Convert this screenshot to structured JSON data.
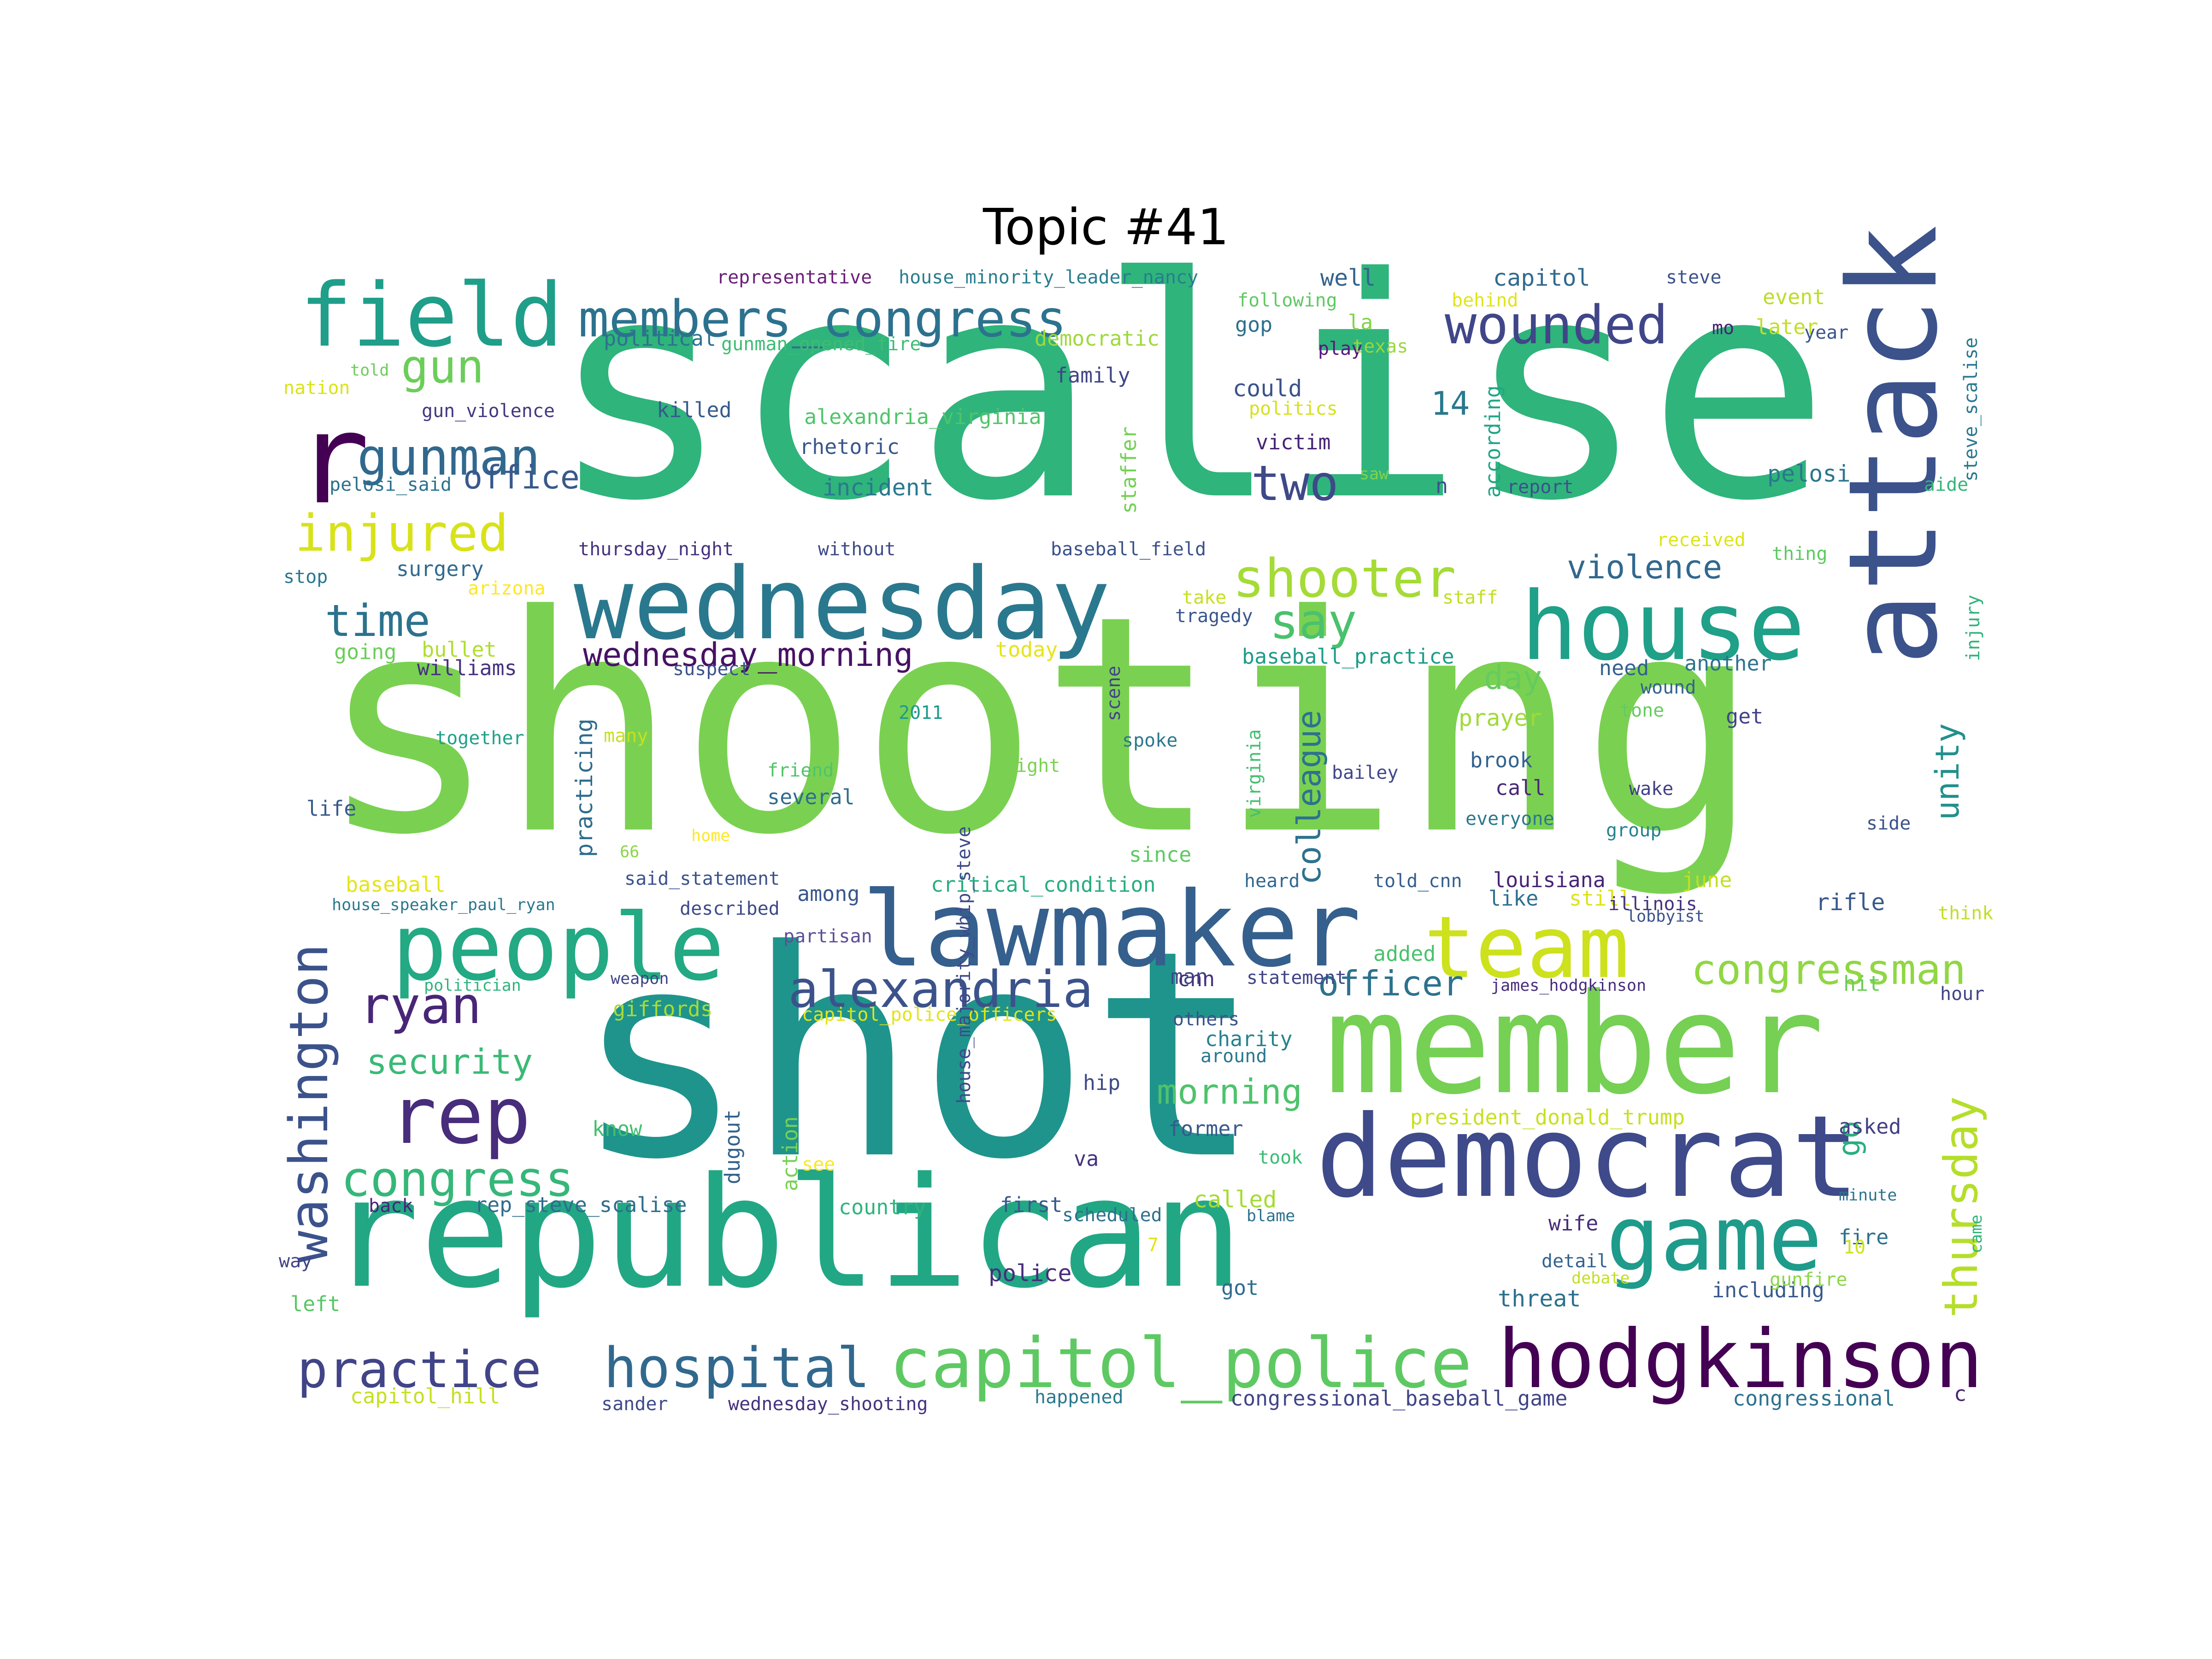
{
  "title": "Topic #41",
  "words": [
    {
      "text": "scalise",
      "color": "#2fb47c"
    },
    {
      "text": "shooting",
      "color": "#7ad151"
    },
    {
      "text": "shot",
      "color": "#1f948c"
    },
    {
      "text": "republican",
      "color": "#22a785"
    },
    {
      "text": "member",
      "color": "#75d054"
    },
    {
      "text": "democrat",
      "color": "#3e4a89"
    },
    {
      "text": "wednesday",
      "color": "#2a788e"
    },
    {
      "text": "lawmaker",
      "color": "#355f8d"
    },
    {
      "text": "people",
      "color": "#23a983"
    },
    {
      "text": "attack",
      "color": "#3b528b"
    },
    {
      "text": "house",
      "color": "#1fa088"
    },
    {
      "text": "field",
      "color": "#1f9e89"
    },
    {
      "text": "game",
      "color": "#1e9b8a"
    },
    {
      "text": "hodgkinson",
      "color": "#440154"
    },
    {
      "text": "team",
      "color": "#cde11d"
    },
    {
      "text": "capitol_police",
      "color": "#5ec962"
    },
    {
      "text": "hospital",
      "color": "#31688e"
    },
    {
      "text": "practice",
      "color": "#414487"
    },
    {
      "text": "members_congress",
      "color": "#2c728e"
    },
    {
      "text": "r",
      "color": "#440154"
    },
    {
      "text": "washington",
      "color": "#3b528b"
    },
    {
      "text": "shooter",
      "color": "#a5db36"
    },
    {
      "text": "wounded",
      "color": "#404688"
    },
    {
      "text": "alexandria",
      "color": "#3b528b"
    },
    {
      "text": "rep",
      "color": "#472d7b"
    },
    {
      "text": "congress",
      "color": "#35b779"
    },
    {
      "text": "gunman",
      "color": "#31688e"
    },
    {
      "text": "two",
      "color": "#3e4989"
    },
    {
      "text": "injured",
      "color": "#d8e219"
    },
    {
      "text": "time",
      "color": "#2c728e"
    },
    {
      "text": "say",
      "color": "#4ac16d"
    },
    {
      "text": "ryan",
      "color": "#482677"
    },
    {
      "text": "thursday",
      "color": "#b5de2b"
    },
    {
      "text": "congressman",
      "color": "#90d743"
    },
    {
      "text": "gun",
      "color": "#6ccd5a"
    },
    {
      "text": "office",
      "color": "#38598c"
    },
    {
      "text": "wednesday_morning",
      "color": "#471164"
    },
    {
      "text": "violence",
      "color": "#31688e"
    },
    {
      "text": "security",
      "color": "#3aba76"
    },
    {
      "text": "morning",
      "color": "#4ec36b"
    },
    {
      "text": "officer",
      "color": "#2c728e"
    },
    {
      "text": "colleague",
      "color": "#2c728e"
    },
    {
      "text": "unity",
      "color": "#21908d"
    },
    {
      "text": "day",
      "color": "#65cb5e"
    },
    {
      "text": "go",
      "color": "#29af7f"
    },
    {
      "text": "14",
      "color": "#2a788e"
    },
    {
      "text": "representative",
      "color": "#6a1e78"
    },
    {
      "text": "house_minority_leader_nancy",
      "color": "#287d8e"
    },
    {
      "text": "steve",
      "color": "#3b528b"
    },
    {
      "text": "capitol",
      "color": "#306a8e"
    },
    {
      "text": "following",
      "color": "#5ec962"
    },
    {
      "text": "behind",
      "color": "#e2e418"
    },
    {
      "text": "event",
      "color": "#bade28"
    },
    {
      "text": "steve_scalise",
      "color": "#2a788e"
    },
    {
      "text": "well",
      "color": "#33638d"
    },
    {
      "text": "democratic",
      "color": "#9dd93b"
    },
    {
      "text": "political",
      "color": "#2c728e"
    },
    {
      "text": "gunman_opened_fire",
      "color": "#3dbc74"
    },
    {
      "text": "gop",
      "color": "#2d708e"
    },
    {
      "text": "la",
      "color": "#81d34d"
    },
    {
      "text": "mo",
      "color": "#482374"
    },
    {
      "text": "later",
      "color": "#c2df23"
    },
    {
      "text": "year",
      "color": "#39568c"
    },
    {
      "text": "play",
      "color": "#5a167d"
    },
    {
      "text": "texas",
      "color": "#99d83d"
    },
    {
      "text": "told",
      "color": "#6ccd5a"
    },
    {
      "text": "nation",
      "color": "#dae319"
    },
    {
      "text": "family",
      "color": "#404588"
    },
    {
      "text": "could",
      "color": "#3b528b"
    },
    {
      "text": "according",
      "color": "#21a685"
    },
    {
      "text": "killed",
      "color": "#375a8c"
    },
    {
      "text": "alexandria_virginia",
      "color": "#50c46a"
    },
    {
      "text": "politics",
      "color": "#d5e21a"
    },
    {
      "text": "gun_violence",
      "color": "#453781"
    },
    {
      "text": "pelosi_said",
      "color": "#2c728e"
    },
    {
      "text": "rhetoric",
      "color": "#39568c"
    },
    {
      "text": "victim",
      "color": "#482475"
    },
    {
      "text": "staffer",
      "color": "#73d056"
    },
    {
      "text": "report",
      "color": "#3b518b"
    },
    {
      "text": "pelosi",
      "color": "#2a778e"
    },
    {
      "text": "aide",
      "color": "#34b679"
    },
    {
      "text": "incident",
      "color": "#2a788e"
    },
    {
      "text": "saw",
      "color": "#81d34d"
    },
    {
      "text": "n",
      "color": "#3b518b"
    },
    {
      "text": "thursday_night",
      "color": "#46327e"
    },
    {
      "text": "without",
      "color": "#3e4a89"
    },
    {
      "text": "baseball_field",
      "color": "#3b518b"
    },
    {
      "text": "received",
      "color": "#dde318"
    },
    {
      "text": "thing",
      "color": "#5ec962"
    },
    {
      "text": "surgery",
      "color": "#306a8e"
    },
    {
      "text": "stop",
      "color": "#2a788e"
    },
    {
      "text": "arizona",
      "color": "#fde725"
    },
    {
      "text": "take",
      "color": "#c8e020"
    },
    {
      "text": "staff",
      "color": "#c2df23"
    },
    {
      "text": "tragedy",
      "color": "#39568c"
    },
    {
      "text": "injury",
      "color": "#2fb47c"
    },
    {
      "text": "going",
      "color": "#6ccd5a"
    },
    {
      "text": "bullet",
      "color": "#b0dd2f"
    },
    {
      "text": "williams",
      "color": "#46337f"
    },
    {
      "text": "today",
      "color": "#e5e419"
    },
    {
      "text": "suspect",
      "color": "#3b528b"
    },
    {
      "text": "baseball_practice",
      "color": "#1e9c89"
    },
    {
      "text": "need",
      "color": "#33628d"
    },
    {
      "text": "another",
      "color": "#2c728e"
    },
    {
      "text": "wound",
      "color": "#33638d"
    },
    {
      "text": "scene",
      "color": "#414487"
    },
    {
      "text": "prayer",
      "color": "#a0da39"
    },
    {
      "text": "get",
      "color": "#414487"
    },
    {
      "text": "together",
      "color": "#1fa188"
    },
    {
      "text": "many",
      "color": "#c8e020"
    },
    {
      "text": "practicing",
      "color": "#2f6c8e"
    },
    {
      "text": "2011",
      "color": "#1f9a8a"
    },
    {
      "text": "friend",
      "color": "#50c46a"
    },
    {
      "text": "right",
      "color": "#7ad151"
    },
    {
      "text": "spoke",
      "color": "#2a788e"
    },
    {
      "text": "virginia",
      "color": "#44bf70"
    },
    {
      "text": "bailey",
      "color": "#3f4889"
    },
    {
      "text": "brook",
      "color": "#33628d"
    },
    {
      "text": "tone",
      "color": "#63cb5f"
    },
    {
      "text": "call",
      "color": "#482878"
    },
    {
      "text": "wake",
      "color": "#424086"
    },
    {
      "text": "several",
      "color": "#2f6c8e"
    },
    {
      "text": "life",
      "color": "#38598c"
    },
    {
      "text": "everyone",
      "color": "#2a788e"
    },
    {
      "text": "group",
      "color": "#26828e"
    },
    {
      "text": "side",
      "color": "#3b528b"
    },
    {
      "text": "66",
      "color": "#8bd646"
    },
    {
      "text": "home",
      "color": "#fde725"
    },
    {
      "text": "since",
      "color": "#5ec962"
    },
    {
      "text": "baseball",
      "color": "#e5e419"
    },
    {
      "text": "said_statement",
      "color": "#3b528b"
    },
    {
      "text": "critical_condition",
      "color": "#27ad81"
    },
    {
      "text": "heard",
      "color": "#31688e"
    },
    {
      "text": "told_cnn",
      "color": "#355f8d"
    },
    {
      "text": "louisiana",
      "color": "#482576"
    },
    {
      "text": "june",
      "color": "#c2df23"
    },
    {
      "text": "house_speaker_paul_ryan",
      "color": "#2a788e"
    },
    {
      "text": "described",
      "color": "#3e4a89"
    },
    {
      "text": "among",
      "color": "#39568c"
    },
    {
      "text": "like",
      "color": "#2d708e"
    },
    {
      "text": "still",
      "color": "#dde318"
    },
    {
      "text": "illinois",
      "color": "#46327e"
    },
    {
      "text": "rifle",
      "color": "#38598c"
    },
    {
      "text": "think",
      "color": "#c0df25"
    },
    {
      "text": "lobbyist",
      "color": "#3b528b"
    },
    {
      "text": "partisan",
      "color": "#5e4f96"
    },
    {
      "text": "added",
      "color": "#4ac16d"
    },
    {
      "text": "man",
      "color": "#404588"
    },
    {
      "text": "statement",
      "color": "#414487"
    },
    {
      "text": "james_hodgkinson",
      "color": "#472d7b"
    },
    {
      "text": "politician",
      "color": "#2fb47c"
    },
    {
      "text": "weapon",
      "color": "#404588"
    },
    {
      "text": "cnn",
      "color": "#46327e"
    },
    {
      "text": "hit",
      "color": "#6ccd5a"
    },
    {
      "text": "hour",
      "color": "#414487"
    },
    {
      "text": "giffords",
      "color": "#a8db34"
    },
    {
      "text": "capitol_police_officers",
      "color": "#e2e418"
    },
    {
      "text": "others",
      "color": "#3b528b"
    },
    {
      "text": "charity",
      "color": "#26828e"
    },
    {
      "text": "around",
      "color": "#2a788e"
    },
    {
      "text": "hip",
      "color": "#3e4a89"
    },
    {
      "text": "president_donald_trump",
      "color": "#c8e020"
    },
    {
      "text": "action",
      "color": "#77d153"
    },
    {
      "text": "house_majority_whip_steve",
      "color": "#3e4a89"
    },
    {
      "text": "asked",
      "color": "#423f85"
    },
    {
      "text": "know",
      "color": "#44bf70"
    },
    {
      "text": "dugout",
      "color": "#33628d"
    },
    {
      "text": "former",
      "color": "#38598c"
    },
    {
      "text": "see",
      "color": "#fde725"
    },
    {
      "text": "va",
      "color": "#46327e"
    },
    {
      "text": "took",
      "color": "#3bbb75"
    },
    {
      "text": "minute",
      "color": "#2c728e"
    },
    {
      "text": "back",
      "color": "#482576"
    },
    {
      "text": "rep_steve_scalise",
      "color": "#2f6c8e"
    },
    {
      "text": "country",
      "color": "#2fb47c"
    },
    {
      "text": "first",
      "color": "#38598c"
    },
    {
      "text": "scheduled",
      "color": "#2d708e"
    },
    {
      "text": "called",
      "color": "#a5db36"
    },
    {
      "text": "blame",
      "color": "#2c728e"
    },
    {
      "text": "wife",
      "color": "#472d7b"
    },
    {
      "text": "came",
      "color": "#2fb47c"
    },
    {
      "text": "fire",
      "color": "#2d708e"
    },
    {
      "text": "10",
      "color": "#cde11d"
    },
    {
      "text": "7",
      "color": "#e2e418"
    },
    {
      "text": "way",
      "color": "#414487"
    },
    {
      "text": "detail",
      "color": "#33638d"
    },
    {
      "text": "debate",
      "color": "#c2df23"
    },
    {
      "text": "police",
      "color": "#472d7b"
    },
    {
      "text": "left",
      "color": "#58c765"
    },
    {
      "text": "got",
      "color": "#2f6c8e"
    },
    {
      "text": "threat",
      "color": "#2d708e"
    },
    {
      "text": "including",
      "color": "#38598c"
    },
    {
      "text": "gunfire",
      "color": "#8bd646"
    },
    {
      "text": "capitol_hill",
      "color": "#c5e021"
    },
    {
      "text": "sander",
      "color": "#3e4a89"
    },
    {
      "text": "wednesday_shooting",
      "color": "#46327e"
    },
    {
      "text": "happened",
      "color": "#2a788e"
    },
    {
      "text": "congressional_baseball_game",
      "color": "#414487"
    },
    {
      "text": "congressional",
      "color": "#2c728e"
    },
    {
      "text": "c",
      "color": "#482374"
    }
  ]
}
